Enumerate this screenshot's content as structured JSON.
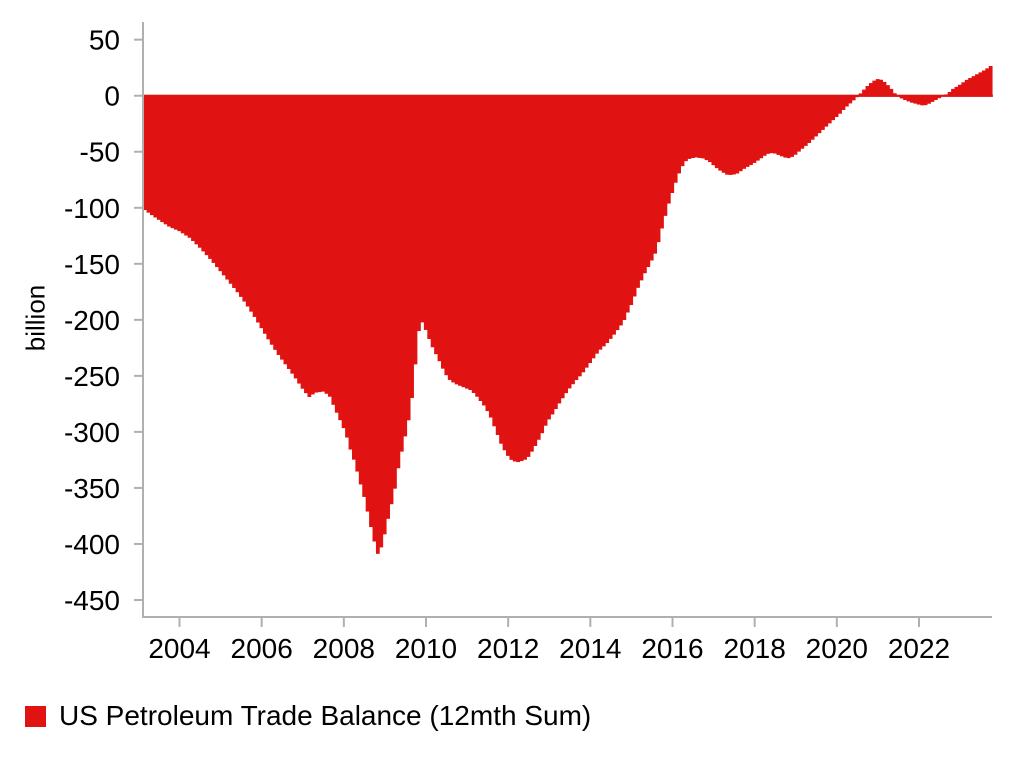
{
  "colors": {
    "bar": "#e01212",
    "axis": "#b0b0b0",
    "text": "#000000",
    "background": "#ffffff"
  },
  "chart_data": {
    "type": "bar",
    "title": "",
    "xlabel": "",
    "ylabel": "billion",
    "units": "USD billion, 12-month rolling sum",
    "bar_frequency": "monthly",
    "legend_label": "US Petroleum Trade Balance (12mth Sum)",
    "legend_position": "bottom-left",
    "grid": false,
    "x_ticks": [
      2004,
      2006,
      2008,
      2010,
      2012,
      2014,
      2016,
      2018,
      2020,
      2022
    ],
    "y_ticks": [
      50,
      0,
      -50,
      -100,
      -150,
      -200,
      -250,
      -300,
      -350,
      -400,
      -450
    ],
    "x_range": [
      2003.1,
      2023.8
    ],
    "ylim": [
      -465,
      65
    ],
    "series": [
      {
        "name": "US Petroleum Trade Balance (12mth Sum)",
        "color": "#e01212",
        "keypoints": [
          [
            2003.12,
            -101
          ],
          [
            2003.3,
            -106
          ],
          [
            2003.5,
            -111
          ],
          [
            2003.75,
            -117
          ],
          [
            2004.0,
            -121
          ],
          [
            2004.25,
            -127
          ],
          [
            2004.5,
            -136
          ],
          [
            2004.75,
            -146
          ],
          [
            2005.0,
            -157
          ],
          [
            2005.2,
            -166
          ],
          [
            2005.4,
            -175
          ],
          [
            2005.6,
            -185
          ],
          [
            2005.8,
            -196
          ],
          [
            2006.0,
            -208
          ],
          [
            2006.2,
            -220
          ],
          [
            2006.4,
            -231
          ],
          [
            2006.6,
            -241
          ],
          [
            2006.8,
            -251
          ],
          [
            2007.0,
            -262
          ],
          [
            2007.15,
            -269
          ],
          [
            2007.3,
            -265
          ],
          [
            2007.5,
            -264
          ],
          [
            2007.65,
            -268
          ],
          [
            2007.8,
            -281
          ],
          [
            2007.95,
            -293
          ],
          [
            2008.05,
            -302
          ],
          [
            2008.15,
            -315
          ],
          [
            2008.27,
            -328
          ],
          [
            2008.4,
            -346
          ],
          [
            2008.52,
            -362
          ],
          [
            2008.62,
            -379
          ],
          [
            2008.72,
            -395
          ],
          [
            2008.82,
            -409
          ],
          [
            2008.9,
            -404
          ],
          [
            2009.0,
            -390
          ],
          [
            2009.1,
            -373
          ],
          [
            2009.22,
            -355
          ],
          [
            2009.33,
            -331
          ],
          [
            2009.45,
            -310
          ],
          [
            2009.55,
            -295
          ],
          [
            2009.65,
            -272
          ],
          [
            2009.72,
            -248
          ],
          [
            2009.8,
            -215
          ],
          [
            2009.87,
            -200
          ],
          [
            2009.95,
            -205
          ],
          [
            2010.05,
            -215
          ],
          [
            2010.15,
            -224
          ],
          [
            2010.3,
            -235
          ],
          [
            2010.45,
            -247
          ],
          [
            2010.55,
            -253
          ],
          [
            2010.7,
            -257
          ],
          [
            2010.9,
            -260
          ],
          [
            2011.1,
            -263
          ],
          [
            2011.25,
            -269
          ],
          [
            2011.4,
            -276
          ],
          [
            2011.55,
            -285
          ],
          [
            2011.7,
            -299
          ],
          [
            2011.85,
            -313
          ],
          [
            2012.0,
            -322
          ],
          [
            2012.1,
            -326
          ],
          [
            2012.25,
            -327
          ],
          [
            2012.4,
            -325
          ],
          [
            2012.5,
            -322
          ],
          [
            2012.65,
            -313
          ],
          [
            2012.8,
            -303
          ],
          [
            2012.95,
            -291
          ],
          [
            2013.1,
            -283
          ],
          [
            2013.25,
            -274
          ],
          [
            2013.45,
            -263
          ],
          [
            2013.65,
            -254
          ],
          [
            2013.8,
            -248
          ],
          [
            2014.0,
            -238
          ],
          [
            2014.2,
            -228
          ],
          [
            2014.4,
            -221
          ],
          [
            2014.6,
            -212
          ],
          [
            2014.8,
            -202
          ],
          [
            2015.0,
            -186
          ],
          [
            2015.15,
            -172
          ],
          [
            2015.3,
            -160
          ],
          [
            2015.45,
            -150
          ],
          [
            2015.6,
            -139
          ],
          [
            2015.75,
            -117
          ],
          [
            2015.9,
            -97
          ],
          [
            2016.05,
            -80
          ],
          [
            2016.2,
            -65
          ],
          [
            2016.35,
            -57
          ],
          [
            2016.55,
            -55
          ],
          [
            2016.75,
            -56
          ],
          [
            2016.9,
            -59
          ],
          [
            2017.05,
            -64
          ],
          [
            2017.2,
            -68
          ],
          [
            2017.35,
            -71
          ],
          [
            2017.55,
            -70
          ],
          [
            2017.75,
            -65
          ],
          [
            2017.95,
            -61
          ],
          [
            2018.15,
            -56
          ],
          [
            2018.3,
            -52
          ],
          [
            2018.45,
            -51
          ],
          [
            2018.65,
            -54
          ],
          [
            2018.8,
            -56
          ],
          [
            2018.95,
            -54
          ],
          [
            2019.1,
            -49
          ],
          [
            2019.3,
            -43
          ],
          [
            2019.5,
            -36
          ],
          [
            2019.7,
            -29
          ],
          [
            2019.9,
            -22
          ],
          [
            2020.05,
            -17
          ],
          [
            2020.2,
            -11
          ],
          [
            2020.35,
            -6
          ],
          [
            2020.5,
            -1
          ],
          [
            2020.62,
            4
          ],
          [
            2020.75,
            9
          ],
          [
            2020.88,
            13
          ],
          [
            2021.0,
            15
          ],
          [
            2021.1,
            14
          ],
          [
            2021.2,
            11
          ],
          [
            2021.35,
            5
          ],
          [
            2021.45,
            0
          ],
          [
            2021.6,
            -3
          ],
          [
            2021.8,
            -6
          ],
          [
            2022.0,
            -8
          ],
          [
            2022.12,
            -9
          ],
          [
            2022.25,
            -7
          ],
          [
            2022.4,
            -4
          ],
          [
            2022.55,
            -1
          ],
          [
            2022.7,
            2
          ],
          [
            2022.82,
            6
          ],
          [
            2023.0,
            10
          ],
          [
            2023.15,
            14
          ],
          [
            2023.3,
            17
          ],
          [
            2023.45,
            20
          ],
          [
            2023.6,
            23
          ],
          [
            2023.72,
            26
          ],
          [
            2023.8,
            28
          ]
        ]
      }
    ]
  }
}
